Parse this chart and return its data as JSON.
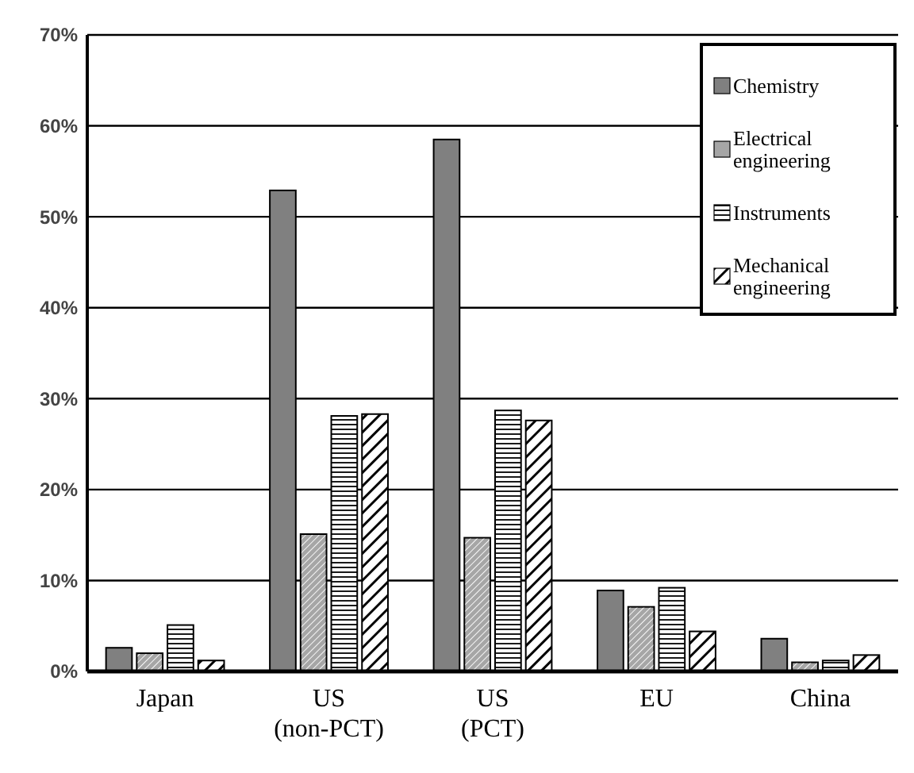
{
  "chart_data": {
    "type": "bar",
    "categories": [
      "Japan",
      "US\n(non-PCT)",
      "US\n(PCT)",
      "EU",
      "China"
    ],
    "series": [
      {
        "name": "Chemistry",
        "color": "#808080",
        "values": [
          2.6,
          52.9,
          58.5,
          8.9,
          3.6
        ]
      },
      {
        "name": "Electrical engineering",
        "color": "#a6a6a6",
        "values": [
          2.0,
          15.1,
          14.7,
          7.1,
          1.0
        ]
      },
      {
        "name": "Instruments",
        "color": "#000000",
        "values": [
          5.1,
          28.1,
          28.7,
          9.2,
          1.2
        ]
      },
      {
        "name": "Mechanical engineering",
        "color": "#000000",
        "values": [
          1.2,
          28.3,
          27.6,
          4.4,
          1.8
        ]
      }
    ],
    "ylim": [
      0,
      70
    ],
    "yticks": [
      {
        "value": 0,
        "label": "0%"
      },
      {
        "value": 10,
        "label": "10%"
      },
      {
        "value": 20,
        "label": "20%"
      },
      {
        "value": 30,
        "label": "30%"
      },
      {
        "value": 40,
        "label": "40%"
      },
      {
        "value": 50,
        "label": "50%"
      },
      {
        "value": 60,
        "label": "60%"
      },
      {
        "value": 70,
        "label": "70%"
      }
    ],
    "grid": "y",
    "legend": "top right"
  }
}
